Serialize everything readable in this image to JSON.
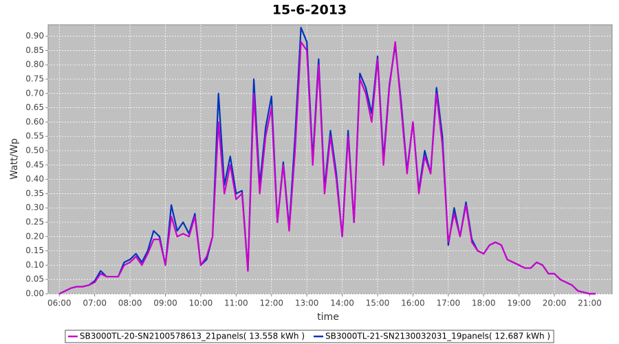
{
  "chart_data": {
    "type": "line",
    "title": "15-6-2013",
    "x_label": "time",
    "y_label": "Watt/Wp",
    "x": [
      "06:00",
      "06:10",
      "06:20",
      "06:30",
      "06:40",
      "06:50",
      "07:00",
      "07:10",
      "07:20",
      "07:30",
      "07:40",
      "07:50",
      "08:00",
      "08:10",
      "08:20",
      "08:30",
      "08:40",
      "08:50",
      "09:00",
      "09:10",
      "09:20",
      "09:30",
      "09:40",
      "09:50",
      "10:00",
      "10:10",
      "10:20",
      "10:30",
      "10:40",
      "10:50",
      "11:00",
      "11:10",
      "11:20",
      "11:30",
      "11:40",
      "11:50",
      "12:00",
      "12:10",
      "12:20",
      "12:30",
      "12:40",
      "12:50",
      "13:00",
      "13:10",
      "13:20",
      "13:30",
      "13:40",
      "13:50",
      "14:00",
      "14:10",
      "14:20",
      "14:30",
      "14:40",
      "14:50",
      "15:00",
      "15:10",
      "15:20",
      "15:30",
      "15:40",
      "15:50",
      "16:00",
      "16:10",
      "16:20",
      "16:30",
      "16:40",
      "16:50",
      "17:00",
      "17:10",
      "17:20",
      "17:30",
      "17:40",
      "17:50",
      "18:00",
      "18:10",
      "18:20",
      "18:30",
      "18:40",
      "18:50",
      "19:00",
      "19:10",
      "19:20",
      "19:30",
      "19:40",
      "19:50",
      "20:00",
      "20:10",
      "20:20",
      "20:30",
      "20:40",
      "20:50",
      "21:00",
      "21:10"
    ],
    "series": [
      {
        "name": "SB3000TL-20-SN2100578613_21panels( 13.558 kWh )",
        "color": "#cc00cc",
        "values": [
          0.0,
          0.01,
          0.02,
          0.025,
          0.025,
          0.03,
          0.04,
          0.07,
          0.06,
          0.06,
          0.06,
          0.1,
          0.11,
          0.13,
          0.1,
          0.14,
          0.19,
          0.19,
          0.1,
          0.27,
          0.2,
          0.21,
          0.2,
          0.27,
          0.1,
          0.13,
          0.2,
          0.6,
          0.35,
          0.45,
          0.33,
          0.35,
          0.08,
          0.7,
          0.35,
          0.55,
          0.65,
          0.25,
          0.45,
          0.22,
          0.5,
          0.88,
          0.85,
          0.45,
          0.8,
          0.35,
          0.55,
          0.4,
          0.2,
          0.55,
          0.25,
          0.75,
          0.7,
          0.6,
          0.82,
          0.45,
          0.72,
          0.88,
          0.65,
          0.42,
          0.6,
          0.35,
          0.48,
          0.42,
          0.7,
          0.52,
          0.18,
          0.28,
          0.2,
          0.31,
          0.18,
          0.15,
          0.14,
          0.17,
          0.18,
          0.17,
          0.12,
          0.11,
          0.1,
          0.09,
          0.09,
          0.11,
          0.1,
          0.07,
          0.07,
          0.05,
          0.04,
          0.03,
          0.01,
          0.005,
          0.0,
          0.0
        ]
      },
      {
        "name": "SB3000TL-21-SN2130032031_19panels( 12.687 kWh )",
        "color": "#0033bb",
        "values": [
          0.0,
          0.01,
          0.02,
          0.025,
          0.025,
          0.03,
          0.045,
          0.08,
          0.06,
          0.06,
          0.06,
          0.11,
          0.12,
          0.14,
          0.11,
          0.15,
          0.22,
          0.2,
          0.1,
          0.31,
          0.22,
          0.25,
          0.21,
          0.28,
          0.1,
          0.12,
          0.2,
          0.7,
          0.38,
          0.48,
          0.35,
          0.36,
          0.08,
          0.75,
          0.38,
          0.58,
          0.69,
          0.25,
          0.46,
          0.23,
          0.55,
          0.93,
          0.88,
          0.47,
          0.82,
          0.37,
          0.57,
          0.42,
          0.2,
          0.57,
          0.25,
          0.77,
          0.72,
          0.63,
          0.83,
          0.47,
          0.73,
          0.87,
          0.67,
          0.43,
          0.6,
          0.36,
          0.5,
          0.42,
          0.72,
          0.55,
          0.17,
          0.3,
          0.2,
          0.32,
          0.19,
          0.15,
          0.14,
          0.17,
          0.18,
          0.17,
          0.12,
          0.11,
          0.1,
          0.09,
          0.09,
          0.11,
          0.1,
          0.07,
          0.07,
          0.05,
          0.04,
          0.03,
          0.01,
          0.005,
          0.0,
          0.0
        ]
      }
    ],
    "xlim": [
      "05:41",
      "21:38"
    ],
    "xticks": [
      "06:00",
      "07:00",
      "08:00",
      "09:00",
      "10:00",
      "11:00",
      "12:00",
      "13:00",
      "14:00",
      "15:00",
      "16:00",
      "17:00",
      "18:00",
      "19:00",
      "20:00",
      "21:00"
    ],
    "ylim": [
      0,
      0.94
    ],
    "yticks": [
      {
        "value": 0,
        "label": "0.00"
      },
      {
        "value": 0.05,
        "label": "0.05"
      },
      {
        "value": 0.1,
        "label": "0.10"
      },
      {
        "value": 0.15,
        "label": "0.15"
      },
      {
        "value": 0.2,
        "label": "0.20"
      },
      {
        "value": 0.25,
        "label": "0.25"
      },
      {
        "value": 0.3,
        "label": "0.30"
      },
      {
        "value": 0.35,
        "label": "0.35"
      },
      {
        "value": 0.4,
        "label": "0.40"
      },
      {
        "value": 0.45,
        "label": "0.45"
      },
      {
        "value": 0.5,
        "label": "0.50"
      },
      {
        "value": 0.55,
        "label": "0.55"
      },
      {
        "value": 0.6,
        "label": "0.60"
      },
      {
        "value": 0.65,
        "label": "0.65"
      },
      {
        "value": 0.7,
        "label": "0.70"
      },
      {
        "value": 0.75,
        "label": "0.75"
      },
      {
        "value": 0.8,
        "label": "0.80"
      },
      {
        "value": 0.85,
        "label": "0.85"
      },
      {
        "value": 0.9,
        "label": "0.90"
      }
    ],
    "grid": true,
    "legend": "bottom"
  }
}
